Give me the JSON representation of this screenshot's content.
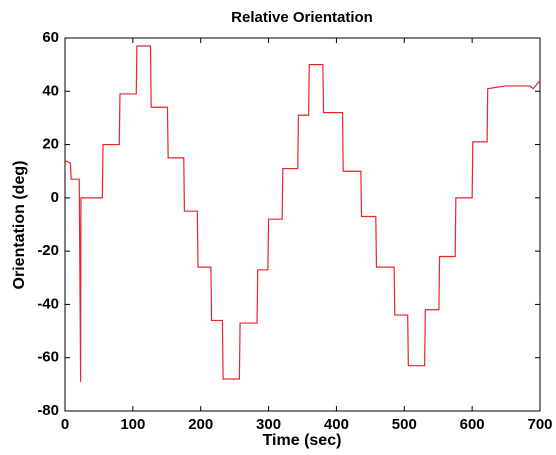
{
  "chart_data": {
    "type": "line",
    "title": "Relative Orientation",
    "x_label": "Time (sec)",
    "y_label": "Orientation (deg)",
    "x": [
      0,
      8,
      9,
      10,
      21,
      23,
      23.5,
      24,
      55,
      56,
      80,
      81,
      105,
      106,
      126,
      127,
      151,
      152,
      175,
      176,
      195,
      196,
      215,
      216,
      232,
      233,
      257,
      258,
      283,
      284,
      299,
      300,
      320,
      321,
      343,
      344,
      359,
      360,
      380,
      381,
      409,
      410,
      436,
      437,
      458,
      459,
      485,
      486,
      505,
      506,
      530,
      531,
      551,
      552,
      575,
      576,
      600,
      601,
      622,
      623,
      650,
      685,
      690,
      700
    ],
    "series": [
      {
        "name": "Orientation",
        "color": "#e8262a",
        "values": [
          14,
          13,
          7,
          7,
          7,
          -69,
          0,
          0,
          0,
          20,
          20,
          39,
          39,
          57,
          57,
          34,
          34,
          15,
          15,
          -5,
          -5,
          -26,
          -26,
          -46,
          -46,
          -68,
          -68,
          -47,
          -47,
          -27,
          -27,
          -8,
          -8,
          11,
          11,
          31,
          31,
          50,
          50,
          32,
          32,
          10,
          10,
          -7,
          -7,
          -26,
          -26,
          -44,
          -44,
          -63,
          -63,
          -42,
          -42,
          -22,
          -22,
          0,
          0,
          21,
          21,
          41,
          42,
          42,
          41,
          44
        ]
      }
    ],
    "xlim": [
      0,
      700
    ],
    "xticks": [
      0,
      100,
      200,
      300,
      400,
      500,
      600,
      700
    ],
    "ylim": [
      -80,
      60
    ],
    "yticks": [
      -80,
      -60,
      -40,
      -20,
      0,
      20,
      40,
      60
    ]
  }
}
